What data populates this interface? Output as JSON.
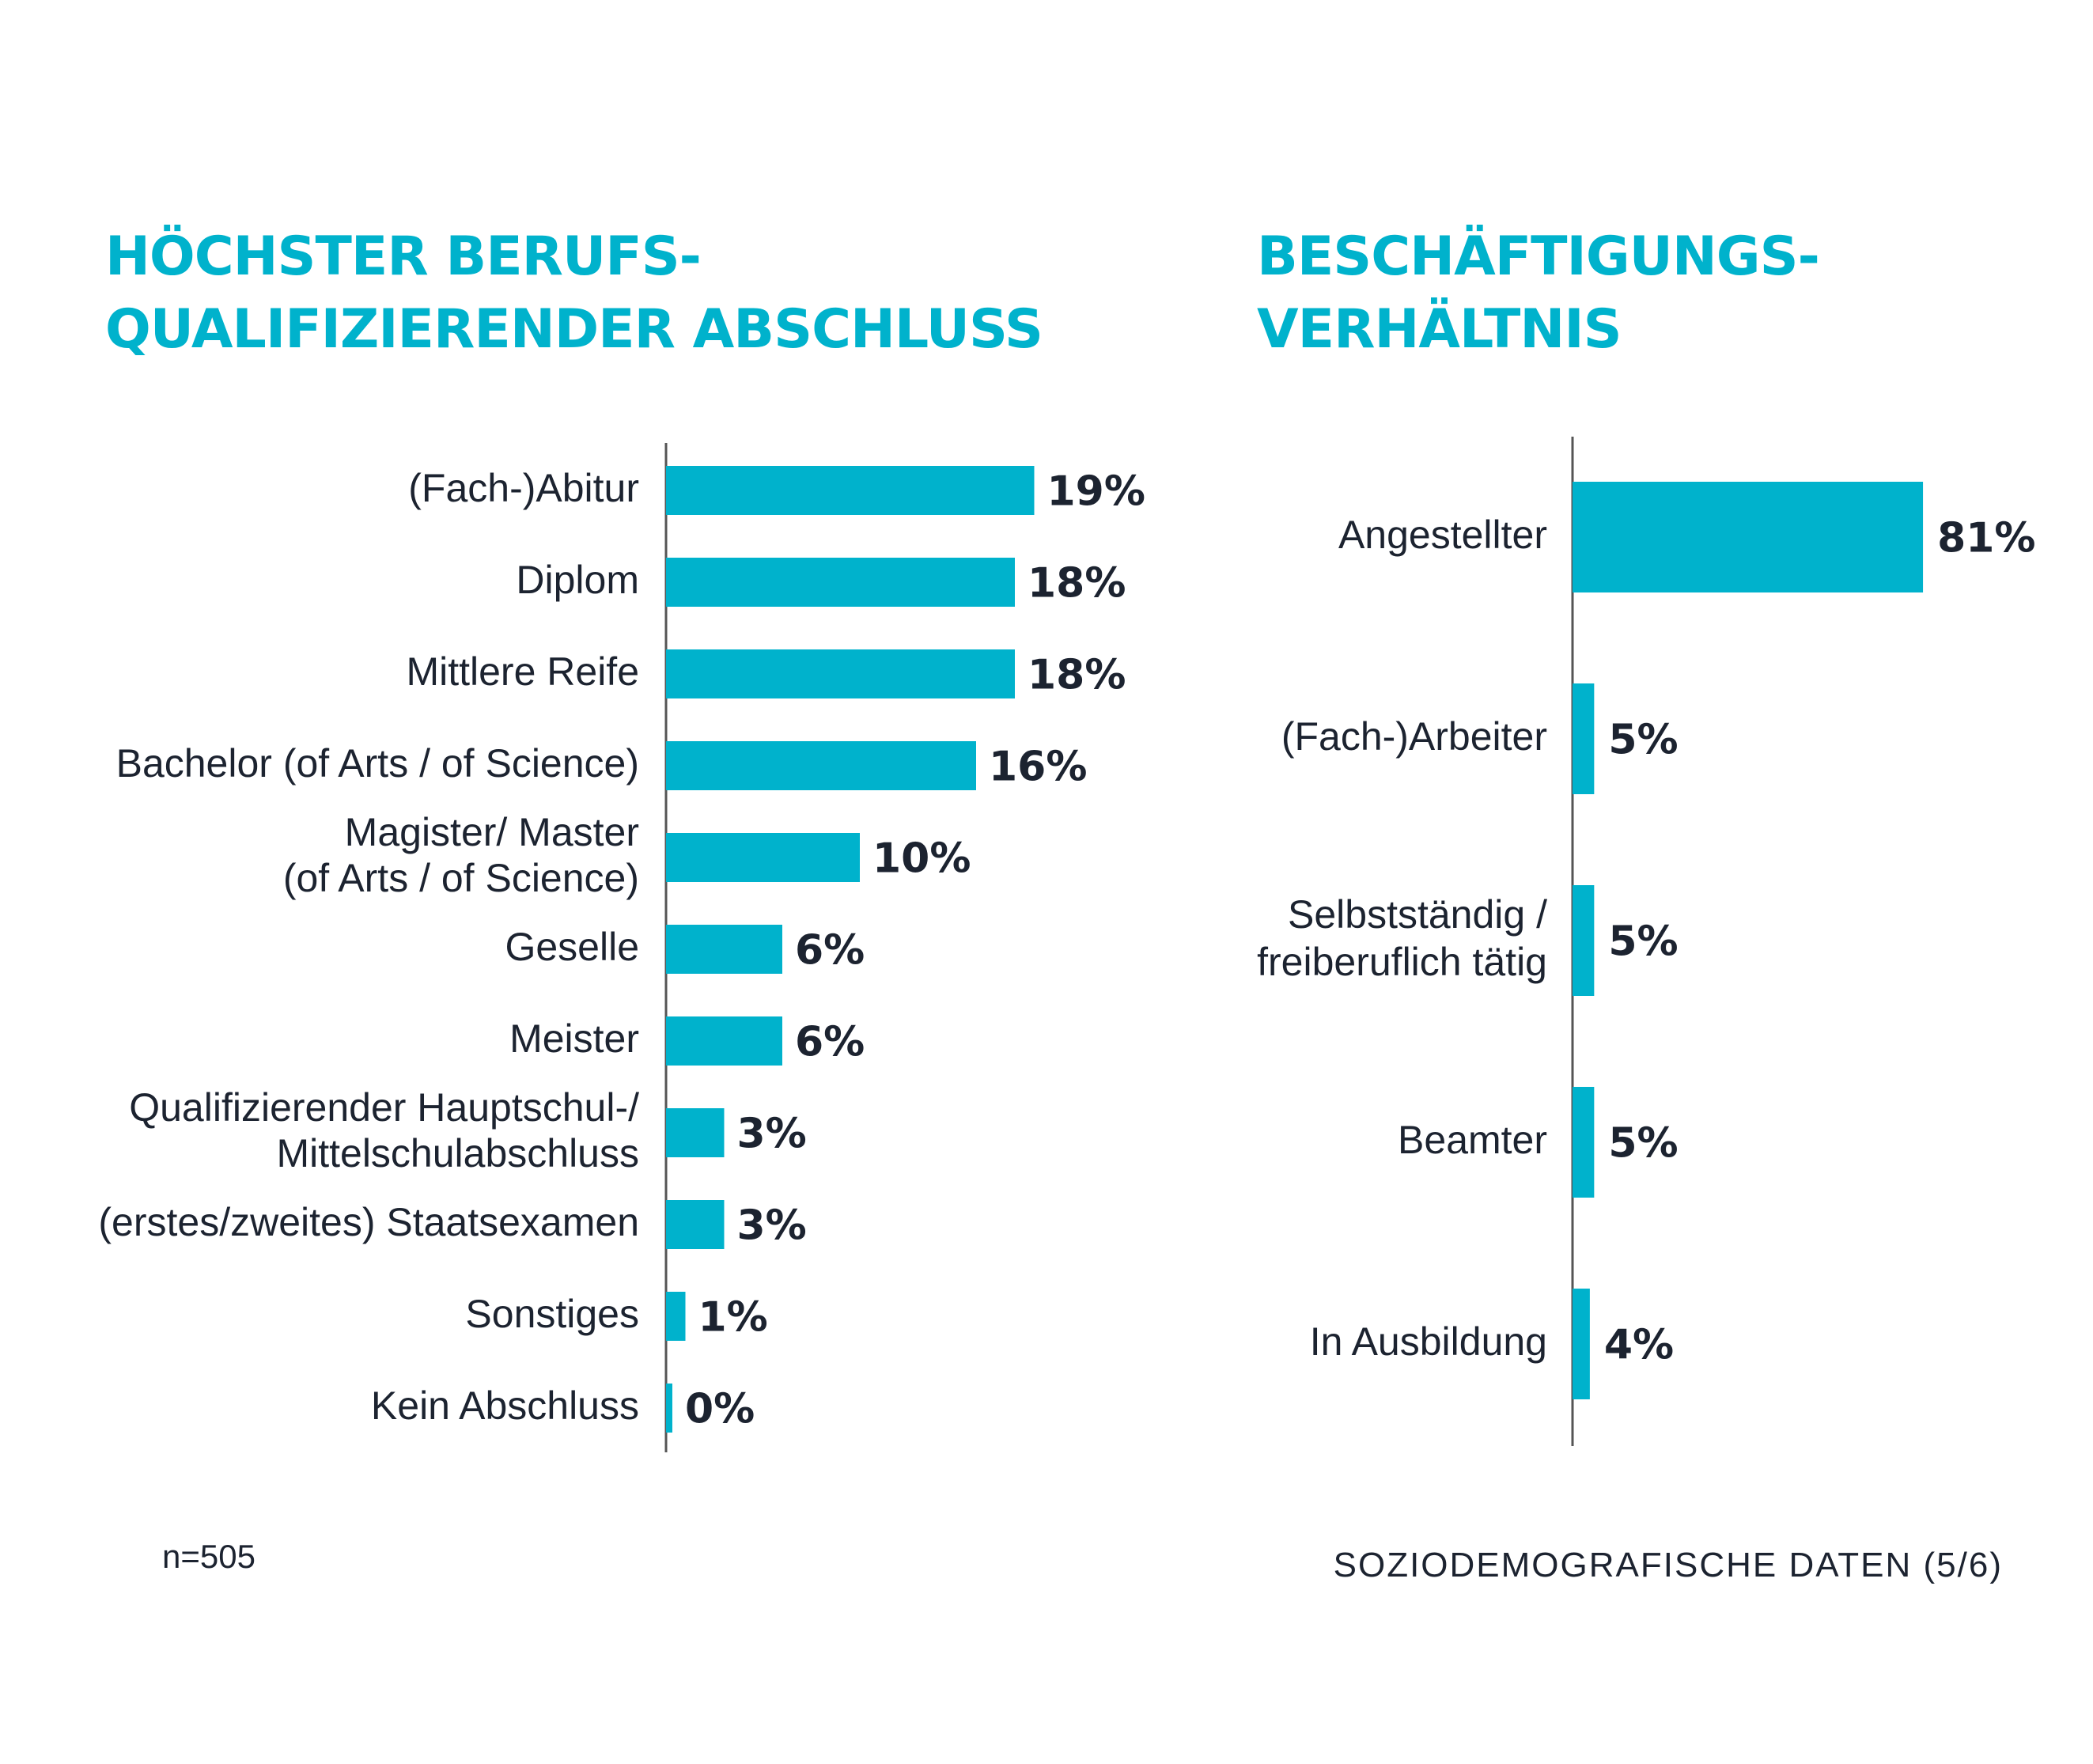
{
  "footnote": {
    "sample_size": "n=505",
    "page_label": "SOZIODEMOGRAFISCHE DATEN (5/6)"
  },
  "colors": {
    "bar": "#00b2cc",
    "title": "#00b2cc",
    "text": "#1c2330",
    "axis": "#555555"
  },
  "chart_data": [
    {
      "type": "bar",
      "orientation": "horizontal",
      "title": [
        "HÖCHSTER BERUFS-",
        "QUALIFIZIERENDER ABSCHLUSS"
      ],
      "categories": [
        [
          "(Fach-)Abitur"
        ],
        [
          "Diplom"
        ],
        [
          "Mittlere Reife"
        ],
        [
          "Bachelor (of Arts / of Science)"
        ],
        [
          "Magister/ Master",
          "(of Arts / of Science)"
        ],
        [
          "Geselle"
        ],
        [
          "Meister"
        ],
        [
          "Qualifizierender Hauptschul-/",
          "Mittelschulabschluss"
        ],
        [
          "(erstes/zweites) Staatsexamen"
        ],
        [
          "Sonstiges"
        ],
        [
          "Kein Abschluss"
        ]
      ],
      "values": [
        19,
        18,
        18,
        16,
        10,
        6,
        6,
        3,
        3,
        1,
        0
      ],
      "value_labels": [
        "19%",
        "18%",
        "18%",
        "16%",
        "10%",
        "6%",
        "6%",
        "3%",
        "3%",
        "1%",
        "0%"
      ],
      "unit": "%"
    },
    {
      "type": "bar",
      "orientation": "horizontal",
      "title": [
        "BESCHÄFTIGUNGS-",
        "VERHÄLTNIS"
      ],
      "categories": [
        [
          "Angestellter"
        ],
        [
          "(Fach-)Arbeiter"
        ],
        [
          "Selbstständig /",
          "freiberuflich tätig"
        ],
        [
          "Beamter"
        ],
        [
          "In Ausbildung"
        ]
      ],
      "values": [
        81,
        5,
        5,
        5,
        4
      ],
      "value_labels": [
        "81%",
        "5%",
        "5%",
        "5%",
        "4%"
      ],
      "unit": "%"
    }
  ]
}
